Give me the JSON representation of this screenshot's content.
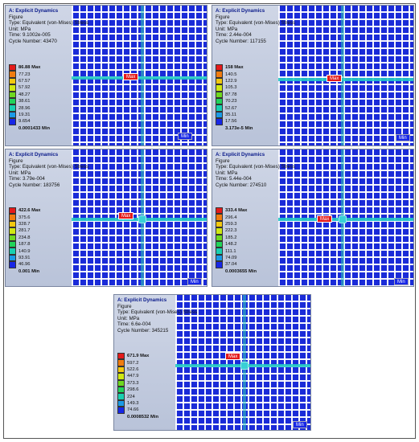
{
  "common": {
    "title": "A: Explicit Dynamics",
    "figure": "Figure",
    "type": "Type: Equivalent (von-Mises) Stress",
    "unit": "Unit: MPa",
    "max_tag": "Max",
    "min_tag": "Min"
  },
  "legend_colors": [
    "#e41a1a",
    "#f07c10",
    "#f2c80f",
    "#cfe812",
    "#6ed820",
    "#21d35a",
    "#18d0b0",
    "#1a9ae6",
    "#1727e6"
  ],
  "panels": [
    {
      "time": "Time: 9.1002e-005",
      "cycle": "Cycle Number: 43470",
      "labels": [
        "86.88 Max",
        "77.23",
        "67.57",
        "57.92",
        "48.27",
        "38.61",
        "28.96",
        "19.31",
        "9.654",
        "0.0001433 Min"
      ]
    },
    {
      "time": "Time: 2.44e-004",
      "cycle": "Cycle Number: 117155",
      "labels": [
        "158 Max",
        "140.5",
        "122.9",
        "105.3",
        "87.78",
        "70.23",
        "52.67",
        "35.11",
        "17.56",
        "3.173e-5 Min"
      ]
    },
    {
      "time": "Time: 3.79e-004",
      "cycle": "Cycle Number: 183756",
      "labels": [
        "422.6 Max",
        "375.6",
        "328.7",
        "281.7",
        "234.8",
        "187.8",
        "140.9",
        "93.91",
        "46.96",
        "0.001 Min"
      ]
    },
    {
      "time": "Time: 5.44e-004",
      "cycle": "Cycle Number: 274510",
      "labels": [
        "333.4 Max",
        "296.4",
        "259.3",
        "222.3",
        "185.2",
        "148.2",
        "111.1",
        "74.09",
        "37.04",
        "0.0003655 Min"
      ]
    },
    {
      "time": "Time: 6.6e-004",
      "cycle": "Cycle Number: 345215",
      "labels": [
        "671.9 Max",
        "597.2",
        "522.6",
        "447.9",
        "373.3",
        "298.6",
        "224",
        "149.3",
        "74.66",
        "0.0008532 Min"
      ]
    }
  ]
}
